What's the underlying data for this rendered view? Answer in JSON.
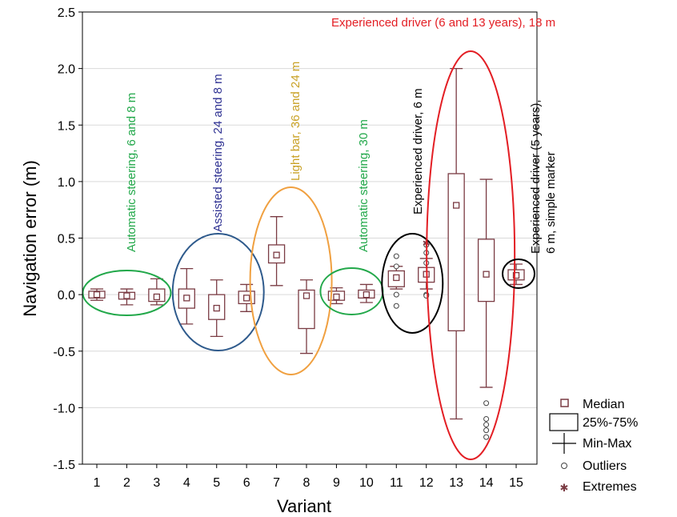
{
  "chart_data": {
    "type": "box",
    "xlabel": "Variant",
    "ylabel": "Navigation error (m)",
    "ylim": [
      -1.5,
      2.5
    ],
    "yticks": [
      "-1.5",
      "-1.0",
      "-0.5",
      "0.0",
      "0.5",
      "1.0",
      "1.5",
      "2.0",
      "2.5"
    ],
    "categories": [
      "1",
      "2",
      "3",
      "4",
      "5",
      "6",
      "7",
      "8",
      "9",
      "10",
      "11",
      "12",
      "13",
      "14",
      "15"
    ],
    "grid": true,
    "box_color": "#7a3b43",
    "boxes": [
      {
        "variant": "1",
        "median": 0.0,
        "q1": -0.03,
        "q3": 0.03,
        "min": -0.05,
        "max": 0.05,
        "outliers": [],
        "extremes": []
      },
      {
        "variant": "2",
        "median": -0.01,
        "q1": -0.04,
        "q3": 0.02,
        "min": -0.09,
        "max": 0.05,
        "outliers": [],
        "extremes": []
      },
      {
        "variant": "3",
        "median": -0.02,
        "q1": -0.06,
        "q3": 0.05,
        "min": -0.09,
        "max": 0.14,
        "outliers": [],
        "extremes": []
      },
      {
        "variant": "4",
        "median": -0.03,
        "q1": -0.12,
        "q3": 0.05,
        "min": -0.26,
        "max": 0.23,
        "outliers": [],
        "extremes": []
      },
      {
        "variant": "5",
        "median": -0.12,
        "q1": -0.22,
        "q3": 0.0,
        "min": -0.37,
        "max": 0.13,
        "outliers": [],
        "extremes": []
      },
      {
        "variant": "6",
        "median": -0.03,
        "q1": -0.08,
        "q3": 0.03,
        "min": -0.15,
        "max": 0.09,
        "outliers": [],
        "extremes": []
      },
      {
        "variant": "7",
        "median": 0.35,
        "q1": 0.28,
        "q3": 0.44,
        "min": 0.08,
        "max": 0.69,
        "outliers": [],
        "extremes": []
      },
      {
        "variant": "8",
        "median": -0.01,
        "q1": -0.3,
        "q3": 0.04,
        "min": -0.52,
        "max": 0.13,
        "outliers": [],
        "extremes": []
      },
      {
        "variant": "9",
        "median": -0.02,
        "q1": -0.05,
        "q3": 0.03,
        "min": -0.08,
        "max": 0.06,
        "outliers": [],
        "extremes": []
      },
      {
        "variant": "10",
        "median": 0.0,
        "q1": -0.03,
        "q3": 0.04,
        "min": -0.07,
        "max": 0.09,
        "outliers": [],
        "extremes": []
      },
      {
        "variant": "11",
        "median": 0.15,
        "q1": 0.07,
        "q3": 0.21,
        "min": 0.05,
        "max": 0.25,
        "outliers": [
          0.34,
          0.25,
          0.0,
          -0.1
        ],
        "extremes": []
      },
      {
        "variant": "12",
        "median": 0.18,
        "q1": 0.11,
        "q3": 0.24,
        "min": 0.05,
        "max": 0.32,
        "outliers": [
          0.44,
          0.37,
          0.28,
          0.0,
          -0.01
        ],
        "extremes": [
          0.46
        ]
      },
      {
        "variant": "13",
        "median": 0.79,
        "q1": -0.32,
        "q3": 1.07,
        "min": -1.1,
        "max": 2.0,
        "outliers": [],
        "extremes": []
      },
      {
        "variant": "14",
        "median": 0.18,
        "q1": -0.06,
        "q3": 0.49,
        "min": -0.82,
        "max": 1.02,
        "outliers": [
          -0.96,
          -1.1,
          -1.15,
          -1.2,
          -1.26
        ],
        "extremes": []
      },
      {
        "variant": "15",
        "median": 0.17,
        "q1": 0.13,
        "q3": 0.22,
        "min": 0.09,
        "max": 0.27,
        "outliers": [],
        "extremes": []
      }
    ],
    "annotations": [
      {
        "text": "Automatic steering, 6 and 8 m",
        "color": "#22a84a"
      },
      {
        "text": "Assisted steering, 24 and 8 m",
        "color": "#2e3192"
      },
      {
        "text": "Light bar, 36 and 24 m",
        "color": "#c9a227"
      },
      {
        "text": "Automatic steering, 30 m",
        "color": "#22a84a"
      },
      {
        "text": "Experienced driver, 6 m",
        "color": "#000000"
      },
      {
        "text": "Experienced driver (6 and 13 years), 18 m",
        "color": "#e31e24"
      },
      {
        "text_line1": "Experienced driver (5 years),",
        "text_line2": "6 m, simple marker",
        "color": "#000000"
      }
    ],
    "ellipse_colors": [
      "#22a84a",
      "#2e5a8c",
      "#f0a040",
      "#22a84a",
      "#000000",
      "#e31e24",
      "#000000"
    ],
    "legend": {
      "placement": "bottom-right",
      "items": [
        "Median",
        "25%-75%",
        "Min-Max",
        "Outliers",
        "Extremes"
      ]
    }
  }
}
